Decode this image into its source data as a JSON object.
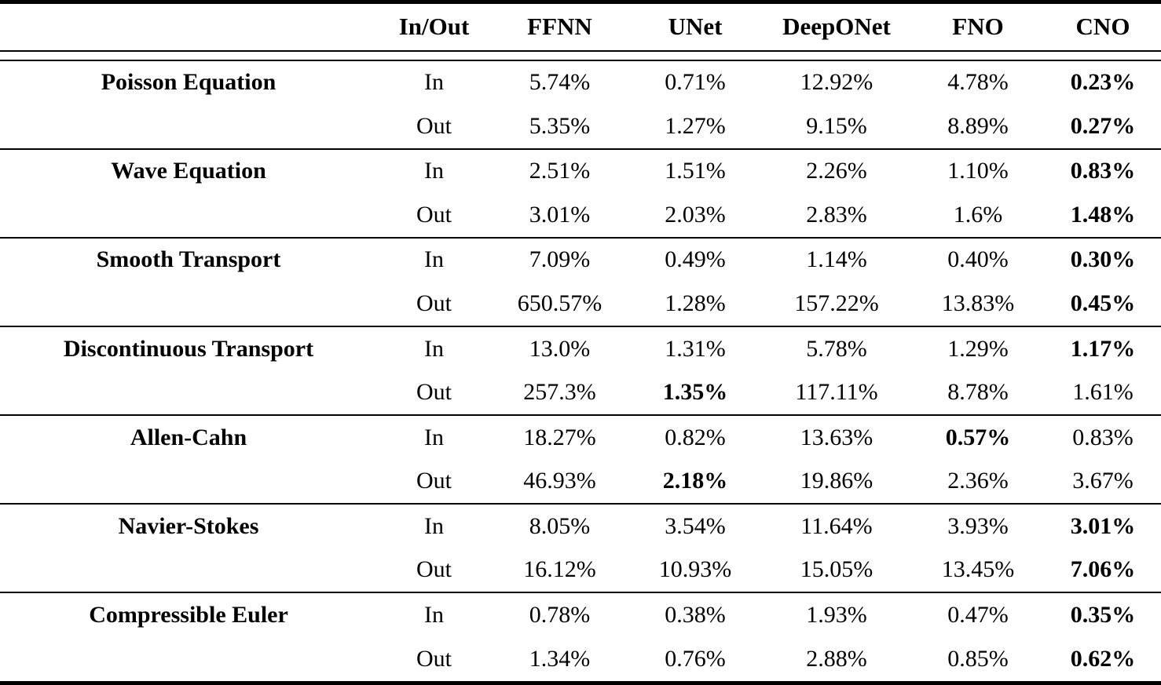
{
  "styles": {
    "text_color": "#000000",
    "background": "#ffffff",
    "rule_color": "#000000"
  },
  "table": {
    "columns": [
      "",
      "In/Out",
      "FFNN",
      "UNet",
      "DeepONet",
      "FNO",
      "CNO"
    ],
    "groups": [
      {
        "label": "Poisson Equation",
        "rows": [
          {
            "inout": "In",
            "values": [
              "5.74%",
              "0.71%",
              "12.92%",
              "4.78%",
              "0.23%"
            ],
            "bold": [
              false,
              false,
              false,
              false,
              true
            ]
          },
          {
            "inout": "Out",
            "values": [
              "5.35%",
              "1.27%",
              "9.15%",
              "8.89%",
              "0.27%"
            ],
            "bold": [
              false,
              false,
              false,
              false,
              true
            ]
          }
        ]
      },
      {
        "label": "Wave Equation",
        "rows": [
          {
            "inout": "In",
            "values": [
              "2.51%",
              "1.51%",
              "2.26%",
              "1.10%",
              "0.83%"
            ],
            "bold": [
              false,
              false,
              false,
              false,
              true
            ]
          },
          {
            "inout": "Out",
            "values": [
              "3.01%",
              "2.03%",
              "2.83%",
              "1.6%",
              "1.48%"
            ],
            "bold": [
              false,
              false,
              false,
              false,
              true
            ]
          }
        ]
      },
      {
        "label": "Smooth Transport",
        "rows": [
          {
            "inout": "In",
            "values": [
              "7.09%",
              "0.49%",
              "1.14%",
              "0.40%",
              "0.30%"
            ],
            "bold": [
              false,
              false,
              false,
              false,
              true
            ]
          },
          {
            "inout": "Out",
            "values": [
              "650.57%",
              "1.28%",
              "157.22%",
              "13.83%",
              "0.45%"
            ],
            "bold": [
              false,
              false,
              false,
              false,
              true
            ]
          }
        ]
      },
      {
        "label": "Discontinuous Transport",
        "rows": [
          {
            "inout": "In",
            "values": [
              "13.0%",
              "1.31%",
              "5.78%",
              "1.29%",
              "1.17%"
            ],
            "bold": [
              false,
              false,
              false,
              false,
              true
            ]
          },
          {
            "inout": "Out",
            "values": [
              "257.3%",
              "1.35%",
              "117.11%",
              "8.78%",
              "1.61%"
            ],
            "bold": [
              false,
              true,
              false,
              false,
              false
            ]
          }
        ]
      },
      {
        "label": "Allen-Cahn",
        "rows": [
          {
            "inout": "In",
            "values": [
              "18.27%",
              "0.82%",
              "13.63%",
              "0.57%",
              "0.83%"
            ],
            "bold": [
              false,
              false,
              false,
              true,
              false
            ]
          },
          {
            "inout": "Out",
            "values": [
              "46.93%",
              "2.18%",
              "19.86%",
              "2.36%",
              "3.67%"
            ],
            "bold": [
              false,
              true,
              false,
              false,
              false
            ]
          }
        ]
      },
      {
        "label": "Navier-Stokes",
        "rows": [
          {
            "inout": "In",
            "values": [
              "8.05%",
              "3.54%",
              "11.64%",
              "3.93%",
              "3.01%"
            ],
            "bold": [
              false,
              false,
              false,
              false,
              true
            ]
          },
          {
            "inout": "Out",
            "values": [
              "16.12%",
              "10.93%",
              "15.05%",
              "13.45%",
              "7.06%"
            ],
            "bold": [
              false,
              false,
              false,
              false,
              true
            ]
          }
        ]
      },
      {
        "label": "Compressible Euler",
        "rows": [
          {
            "inout": "In",
            "values": [
              "0.78%",
              "0.38%",
              "1.93%",
              "0.47%",
              "0.35%"
            ],
            "bold": [
              false,
              false,
              false,
              false,
              true
            ]
          },
          {
            "inout": "Out",
            "values": [
              "1.34%",
              "0.76%",
              "2.88%",
              "0.85%",
              "0.62%"
            ],
            "bold": [
              false,
              false,
              false,
              false,
              true
            ]
          }
        ]
      }
    ]
  }
}
